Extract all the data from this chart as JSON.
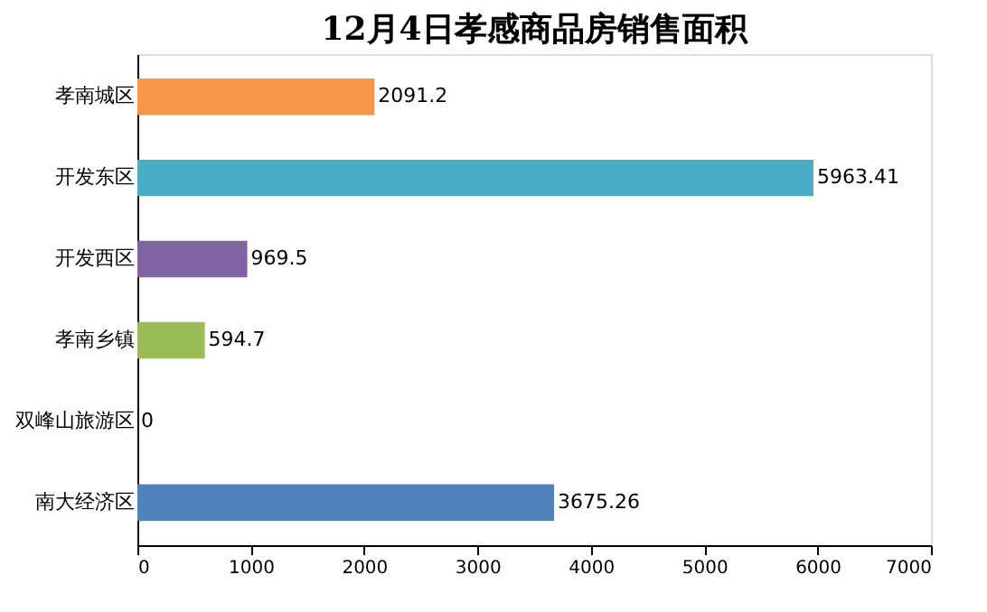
{
  "chart_data": {
    "type": "bar",
    "orientation": "horizontal",
    "title": "12月4日孝感商品房销售面积",
    "categories": [
      "孝南城区",
      "开发东区",
      "开发西区",
      "孝南乡镇",
      "双峰山旅游区",
      "南大经济区"
    ],
    "values": [
      2091.2,
      5963.41,
      969.5,
      594.7,
      0,
      3675.26
    ],
    "colors": [
      "#f79646",
      "#4bacc6",
      "#8064a2",
      "#9bbb59",
      "#4f81bd",
      "#4f81bd"
    ],
    "xlim": [
      0,
      7000
    ],
    "xticks": [
      0,
      1000,
      2000,
      3000,
      4000,
      5000,
      6000,
      7000
    ],
    "data_labels": true,
    "grid": false
  }
}
